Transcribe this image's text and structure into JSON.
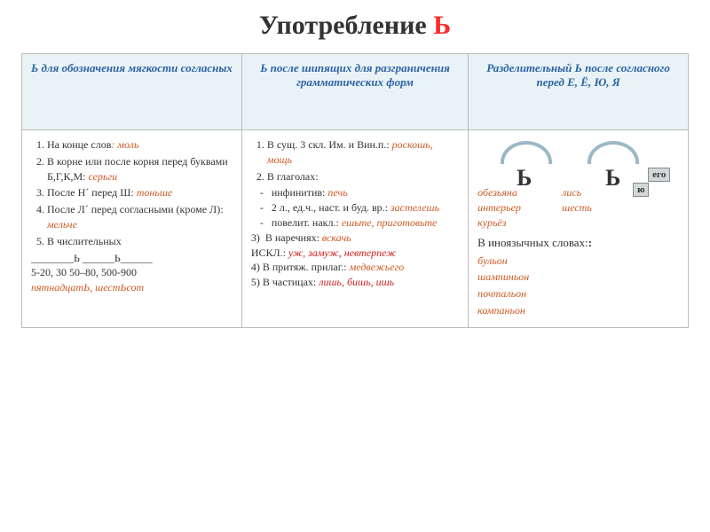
{
  "title_main": "Употребление ",
  "title_accent": "Ь",
  "headers": {
    "h1": "Ь для обозначения мягкости согласных",
    "h2": "Ь после шипящих для разграничения грамматических форм",
    "h3": "Разделительный Ь после согласного перед Е, Ё, Ю, Я"
  },
  "col1": {
    "i1a": "На конце слов",
    "i1b": ": моль",
    "i2a": "В корне или после корня перед буквами Б,Г,К,М: ",
    "i2b": "серьги",
    "i3a": "После Н´  перед Ш: ",
    "i3b": "тоньше",
    "i4a": "После Л´  перед согласными (кроме Л): ",
    "i4b": "мельче",
    "i5": "В  числительных",
    "blanks": "________Ь      ______Ь______",
    "nums": "5-20, 30    50–80, 500-900",
    "ex": "пятнадцатЬ, шестЬсот"
  },
  "col2": {
    "i1a": "В сущ. 3 скл.  Им. и Вин.п.: ",
    "i1b": "роскошь, мощь",
    "i2": "В глаголах:",
    "d1a": "инфинитив: ",
    "d1b": "печь",
    "d2a": "2 л., ед.ч., наст. и буд. вр.: ",
    "d2b": "застелешь",
    "d3a": "повелит. накл.: ",
    "d3b": "ешьте, приготовьте",
    "i3a": "В наречиях: ",
    "i3b": "вскачь",
    "iskla": "ИСКЛ.: ",
    "isklb": "уж, замуж, невтерпеж",
    "i4a": "4) В притяж. прилаг.: ",
    "i4b": "медвежьего",
    "i5a": "5) В частицах: ",
    "i5b": "лишь, бишь, ишь"
  },
  "col3": {
    "sign1": "Ь",
    "sign2": "Ь",
    "ego": "его",
    "yu": "ю",
    "p1l": "обезьяна",
    "p1r": "лись",
    "p2l": "интерьер",
    "p2r": "шесть",
    "p3l": "курьёз",
    "heading": "В иноязычных словах:",
    "w1": "бульон",
    "w2": "шампиньон",
    "w3": "почтальон",
    "w4": "компаньон"
  },
  "colors": {
    "header_bg": "#e9f3f6",
    "header_text": "#2e62a5",
    "border": "#bcbcbc",
    "accent_red": "#cc1e1e",
    "accent_orange": "#cc5a22",
    "arc": "#9db8c6",
    "tag_bg": "#d2d8da"
  }
}
